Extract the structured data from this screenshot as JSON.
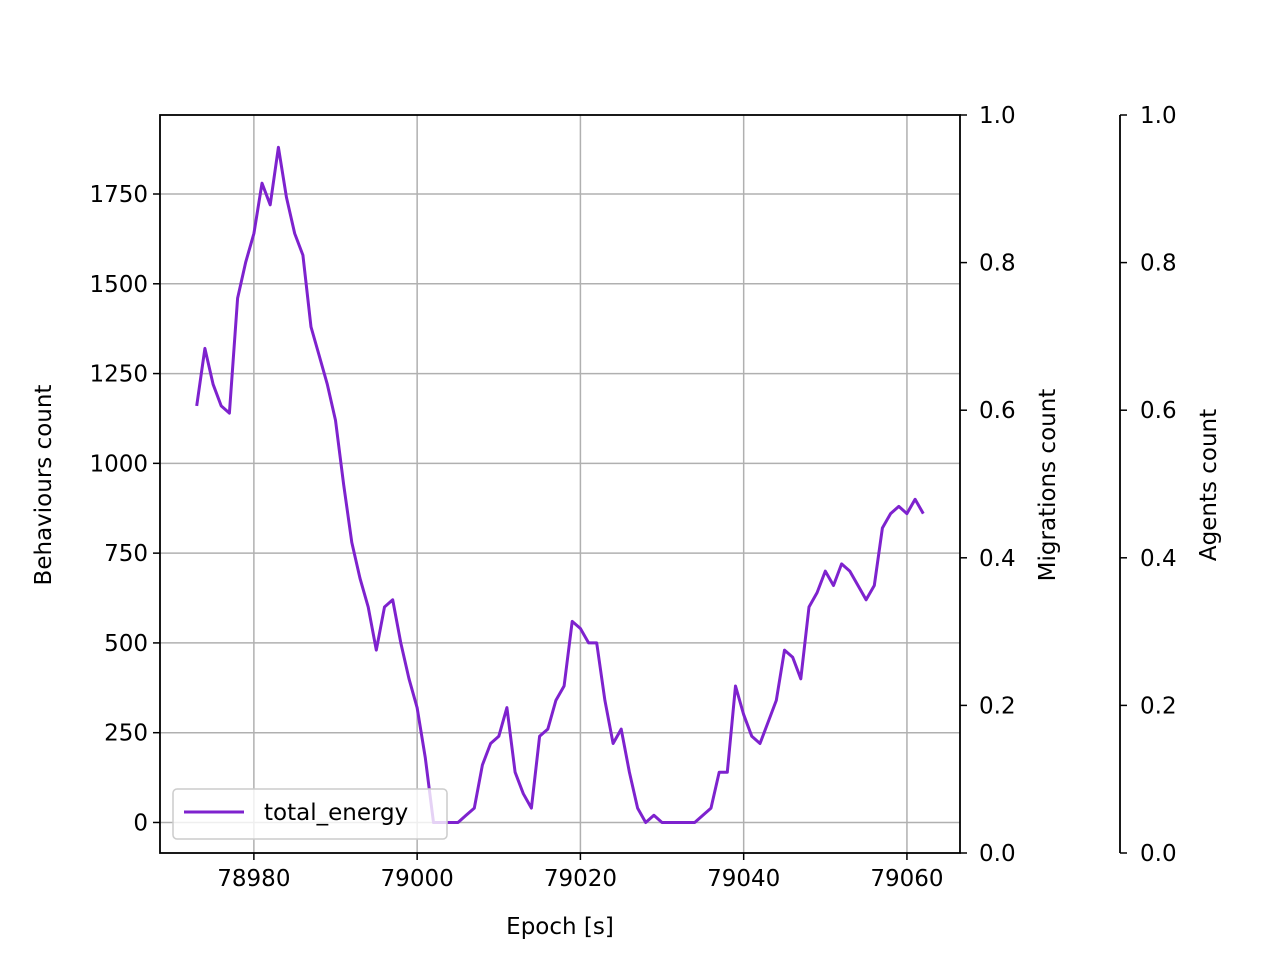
{
  "chart_data": {
    "type": "line",
    "xlabel": "Epoch [s]",
    "ylabel": "Behaviours count",
    "y2label": "Migrations count",
    "y3label": "Agents count",
    "xlim": [
      78968.5,
      79066.5
    ],
    "ylim": [
      -85,
      1970
    ],
    "y2lim": [
      0,
      1
    ],
    "y3lim": [
      0,
      1
    ],
    "xticks": [
      "78980",
      "79000",
      "79020",
      "79040",
      "79060"
    ],
    "yticks": [
      "0",
      "250",
      "500",
      "750",
      "1000",
      "1250",
      "1500",
      "1750"
    ],
    "y2ticks": [
      "0.0",
      "0.2",
      "0.4",
      "0.6",
      "0.8",
      "1.0"
    ],
    "y3ticks": [
      "0.0",
      "0.2",
      "0.4",
      "0.6",
      "0.8",
      "1.0"
    ],
    "grid": true,
    "legend_position": "lower-left",
    "line_color": "#7e22ce",
    "series": [
      {
        "name": "total_energy",
        "x": [
          78973,
          78974,
          78975,
          78976,
          78977,
          78978,
          78979,
          78980,
          78981,
          78982,
          78983,
          78984,
          78985,
          78986,
          78987,
          78988,
          78989,
          78990,
          78991,
          78992,
          78993,
          78994,
          78995,
          78996,
          78997,
          78998,
          78999,
          79000,
          79001,
          79002,
          79003,
          79004,
          79005,
          79006,
          79007,
          79008,
          79009,
          79010,
          79011,
          79012,
          79013,
          79014,
          79015,
          79016,
          79017,
          79018,
          79019,
          79020,
          79021,
          79022,
          79023,
          79024,
          79025,
          79026,
          79027,
          79028,
          79029,
          79030,
          79031,
          79032,
          79033,
          79034,
          79035,
          79036,
          79037,
          79038,
          79039,
          79040,
          79041,
          79042,
          79043,
          79044,
          79045,
          79046,
          79047,
          79048,
          79049,
          79050,
          79051,
          79052,
          79053,
          79054,
          79055,
          79056,
          79057,
          79058,
          79059,
          79060,
          79061,
          79062
        ],
        "values": [
          1160,
          1320,
          1220,
          1160,
          1140,
          1460,
          1560,
          1640,
          1780,
          1720,
          1880,
          1740,
          1640,
          1580,
          1380,
          1300,
          1220,
          1120,
          940,
          780,
          680,
          600,
          480,
          600,
          620,
          500,
          400,
          320,
          180,
          0,
          0,
          0,
          0,
          20,
          40,
          160,
          220,
          240,
          320,
          140,
          80,
          40,
          240,
          260,
          340,
          380,
          560,
          540,
          500,
          500,
          340,
          220,
          260,
          140,
          40,
          0,
          20,
          0,
          0,
          0,
          0,
          0,
          20,
          40,
          140,
          140,
          380,
          300,
          240,
          220,
          280,
          340,
          480,
          460,
          400,
          600,
          640,
          700,
          660,
          720,
          700,
          660,
          620,
          660,
          820,
          860,
          880,
          860,
          900,
          860
        ]
      }
    ]
  }
}
